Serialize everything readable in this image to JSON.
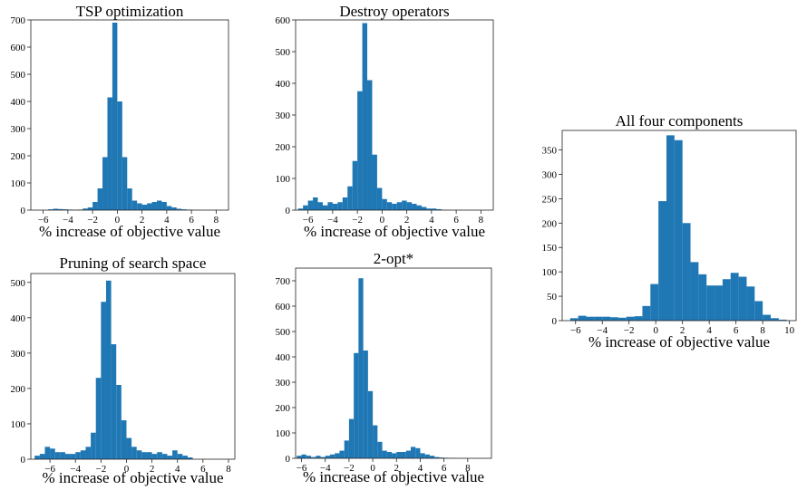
{
  "chart_data": [
    {
      "type": "bar",
      "title": "TSP optimization",
      "xlabel": "% increase of objective value",
      "ylabel": "",
      "xlim": [
        -7,
        9
      ],
      "ylim": [
        0,
        700
      ],
      "xticks": [
        -6,
        -4,
        -2,
        0,
        2,
        4,
        6,
        8
      ],
      "yticks": [
        0,
        100,
        200,
        300,
        400,
        500,
        600,
        700
      ],
      "bin_start": -5.6,
      "bin_width": 0.4,
      "values": [
        3,
        5,
        4,
        3,
        2,
        1,
        2,
        6,
        10,
        30,
        80,
        195,
        415,
        690,
        400,
        195,
        80,
        35,
        25,
        20,
        25,
        30,
        35,
        30,
        15,
        10,
        5,
        3,
        2,
        1,
        1
      ]
    },
    {
      "type": "bar",
      "title": "Destroy operators",
      "xlabel": "% increase of objective value",
      "ylabel": "",
      "xlim": [
        -7,
        9
      ],
      "ylim": [
        0,
        600
      ],
      "xticks": [
        -6,
        -4,
        -2,
        0,
        2,
        4,
        6,
        8
      ],
      "yticks": [
        0,
        100,
        200,
        300,
        400,
        500,
        600
      ],
      "bin_start": -6.8,
      "bin_width": 0.4,
      "values": [
        5,
        15,
        30,
        40,
        25,
        15,
        25,
        20,
        25,
        40,
        75,
        155,
        375,
        590,
        410,
        175,
        70,
        35,
        25,
        20,
        25,
        30,
        25,
        20,
        15,
        10,
        5,
        5,
        3,
        1
      ]
    },
    {
      "type": "bar",
      "title": "Pruning of search space",
      "xlabel": "% increase of objective value",
      "ylabel": "",
      "xlim": [
        -7.5,
        8.5
      ],
      "ylim": [
        0,
        525
      ],
      "xticks": [
        -6,
        -4,
        -2,
        0,
        2,
        4,
        6,
        8
      ],
      "yticks": [
        0,
        100,
        200,
        300,
        400,
        500
      ],
      "bin_start": -7.2,
      "bin_width": 0.4,
      "values": [
        10,
        15,
        35,
        30,
        20,
        20,
        15,
        15,
        20,
        25,
        35,
        75,
        230,
        445,
        505,
        325,
        210,
        110,
        60,
        35,
        25,
        20,
        20,
        15,
        20,
        15,
        10,
        25,
        15,
        10,
        5
      ]
    },
    {
      "type": "bar",
      "title": "2-opt*",
      "xlabel": "% increase of objective value",
      "ylabel": "",
      "xlim": [
        -6.5,
        10
      ],
      "ylim": [
        0,
        750
      ],
      "xticks": [
        -6,
        -4,
        -2,
        0,
        2,
        4,
        6,
        8
      ],
      "yticks": [
        0,
        100,
        200,
        300,
        400,
        500,
        600,
        700
      ],
      "bin_start": -6.4,
      "bin_width": 0.4,
      "values": [
        10,
        15,
        10,
        5,
        10,
        5,
        10,
        15,
        20,
        30,
        70,
        155,
        415,
        710,
        425,
        265,
        130,
        65,
        30,
        25,
        20,
        25,
        25,
        30,
        45,
        40,
        20,
        15,
        10,
        5,
        3,
        2,
        1,
        1
      ]
    },
    {
      "type": "bar",
      "title": "All four components",
      "xlabel": "% increase of objective value",
      "ylabel": "",
      "xlim": [
        -7,
        10.5
      ],
      "ylim": [
        0,
        390
      ],
      "xticks": [
        -6,
        -4,
        -2,
        0,
        2,
        4,
        6,
        8,
        10
      ],
      "yticks": [
        0,
        50,
        100,
        150,
        200,
        250,
        300,
        350
      ],
      "bin_start": -6.4,
      "bin_width": 0.6,
      "values": [
        5,
        10,
        8,
        8,
        8,
        7,
        6,
        8,
        9,
        30,
        75,
        245,
        380,
        370,
        200,
        120,
        95,
        72,
        72,
        85,
        98,
        90,
        70,
        40,
        12,
        5,
        2
      ]
    }
  ]
}
